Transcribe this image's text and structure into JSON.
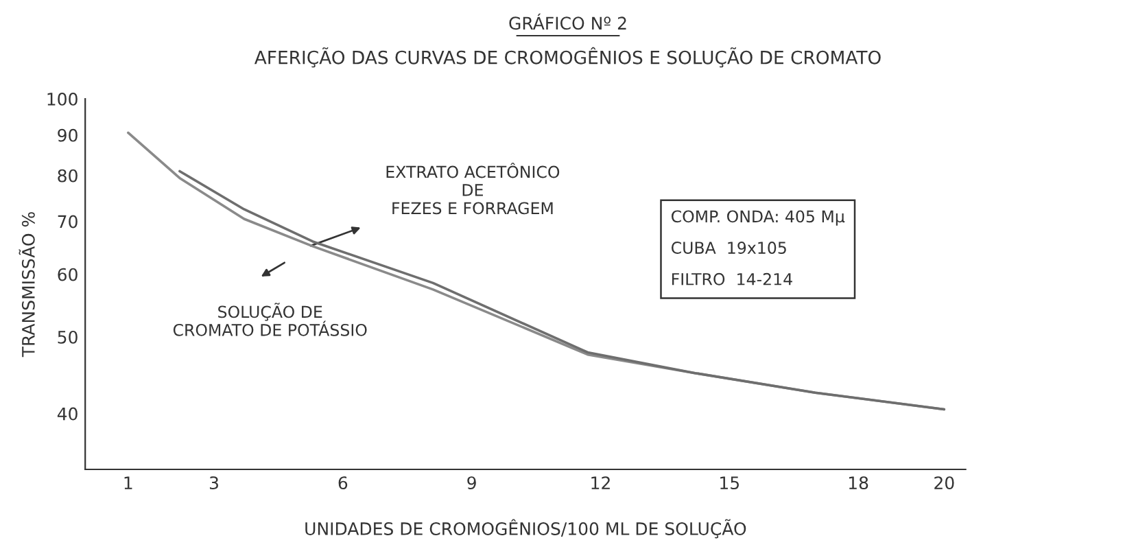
{
  "chart_data": {
    "type": "line",
    "title": "GRÁFICO Nº 2",
    "subtitle": "AFERIÇÃO DAS CURVAS DE CROMOGÊNIOS E SOLUÇÃO DE CROMATO",
    "xlabel": "UNIDADES DE CROMOGÊNIOS/100 ML DE SOLUÇÃO",
    "ylabel": "TRANSMISSÃO %",
    "log": "y",
    "xlim": [
      0,
      20.5
    ],
    "xticks": [
      1,
      3,
      6,
      9,
      12,
      15,
      18,
      20
    ],
    "ylim": [
      34,
      100
    ],
    "yticks": [
      40,
      50,
      60,
      70,
      80,
      90,
      100
    ],
    "grid": false,
    "legend": false,
    "marker": "none",
    "line_style": "solid",
    "series": [
      {
        "color": "#8a8a8a",
        "x": [
          1,
          2.2,
          3.7,
          5.3,
          8.1,
          11.7,
          14.2,
          17,
          20
        ],
        "values": [
          90.6,
          79.4,
          70.5,
          65.1,
          57.4,
          47.5,
          45,
          42.5,
          40.5
        ]
      },
      {
        "color": "#6e6e6e",
        "x": [
          2.2,
          3.7,
          5.3,
          8.1,
          11.7,
          14.2,
          17,
          20
        ],
        "values": [
          81,
          72.5,
          66,
          58.5,
          47.8,
          45,
          42.5,
          40.5
        ]
      }
    ],
    "annotations": [
      "EXTRATO ACETÔNICO\nDE\nFEZES E FORRAGEM",
      "SOLUÇÃO DE\nCROMATO DE POTÁSSIO",
      "COMP. ONDA: 405 Mμ",
      "CUBA  19x105",
      "FILTRO  14-214"
    ]
  }
}
